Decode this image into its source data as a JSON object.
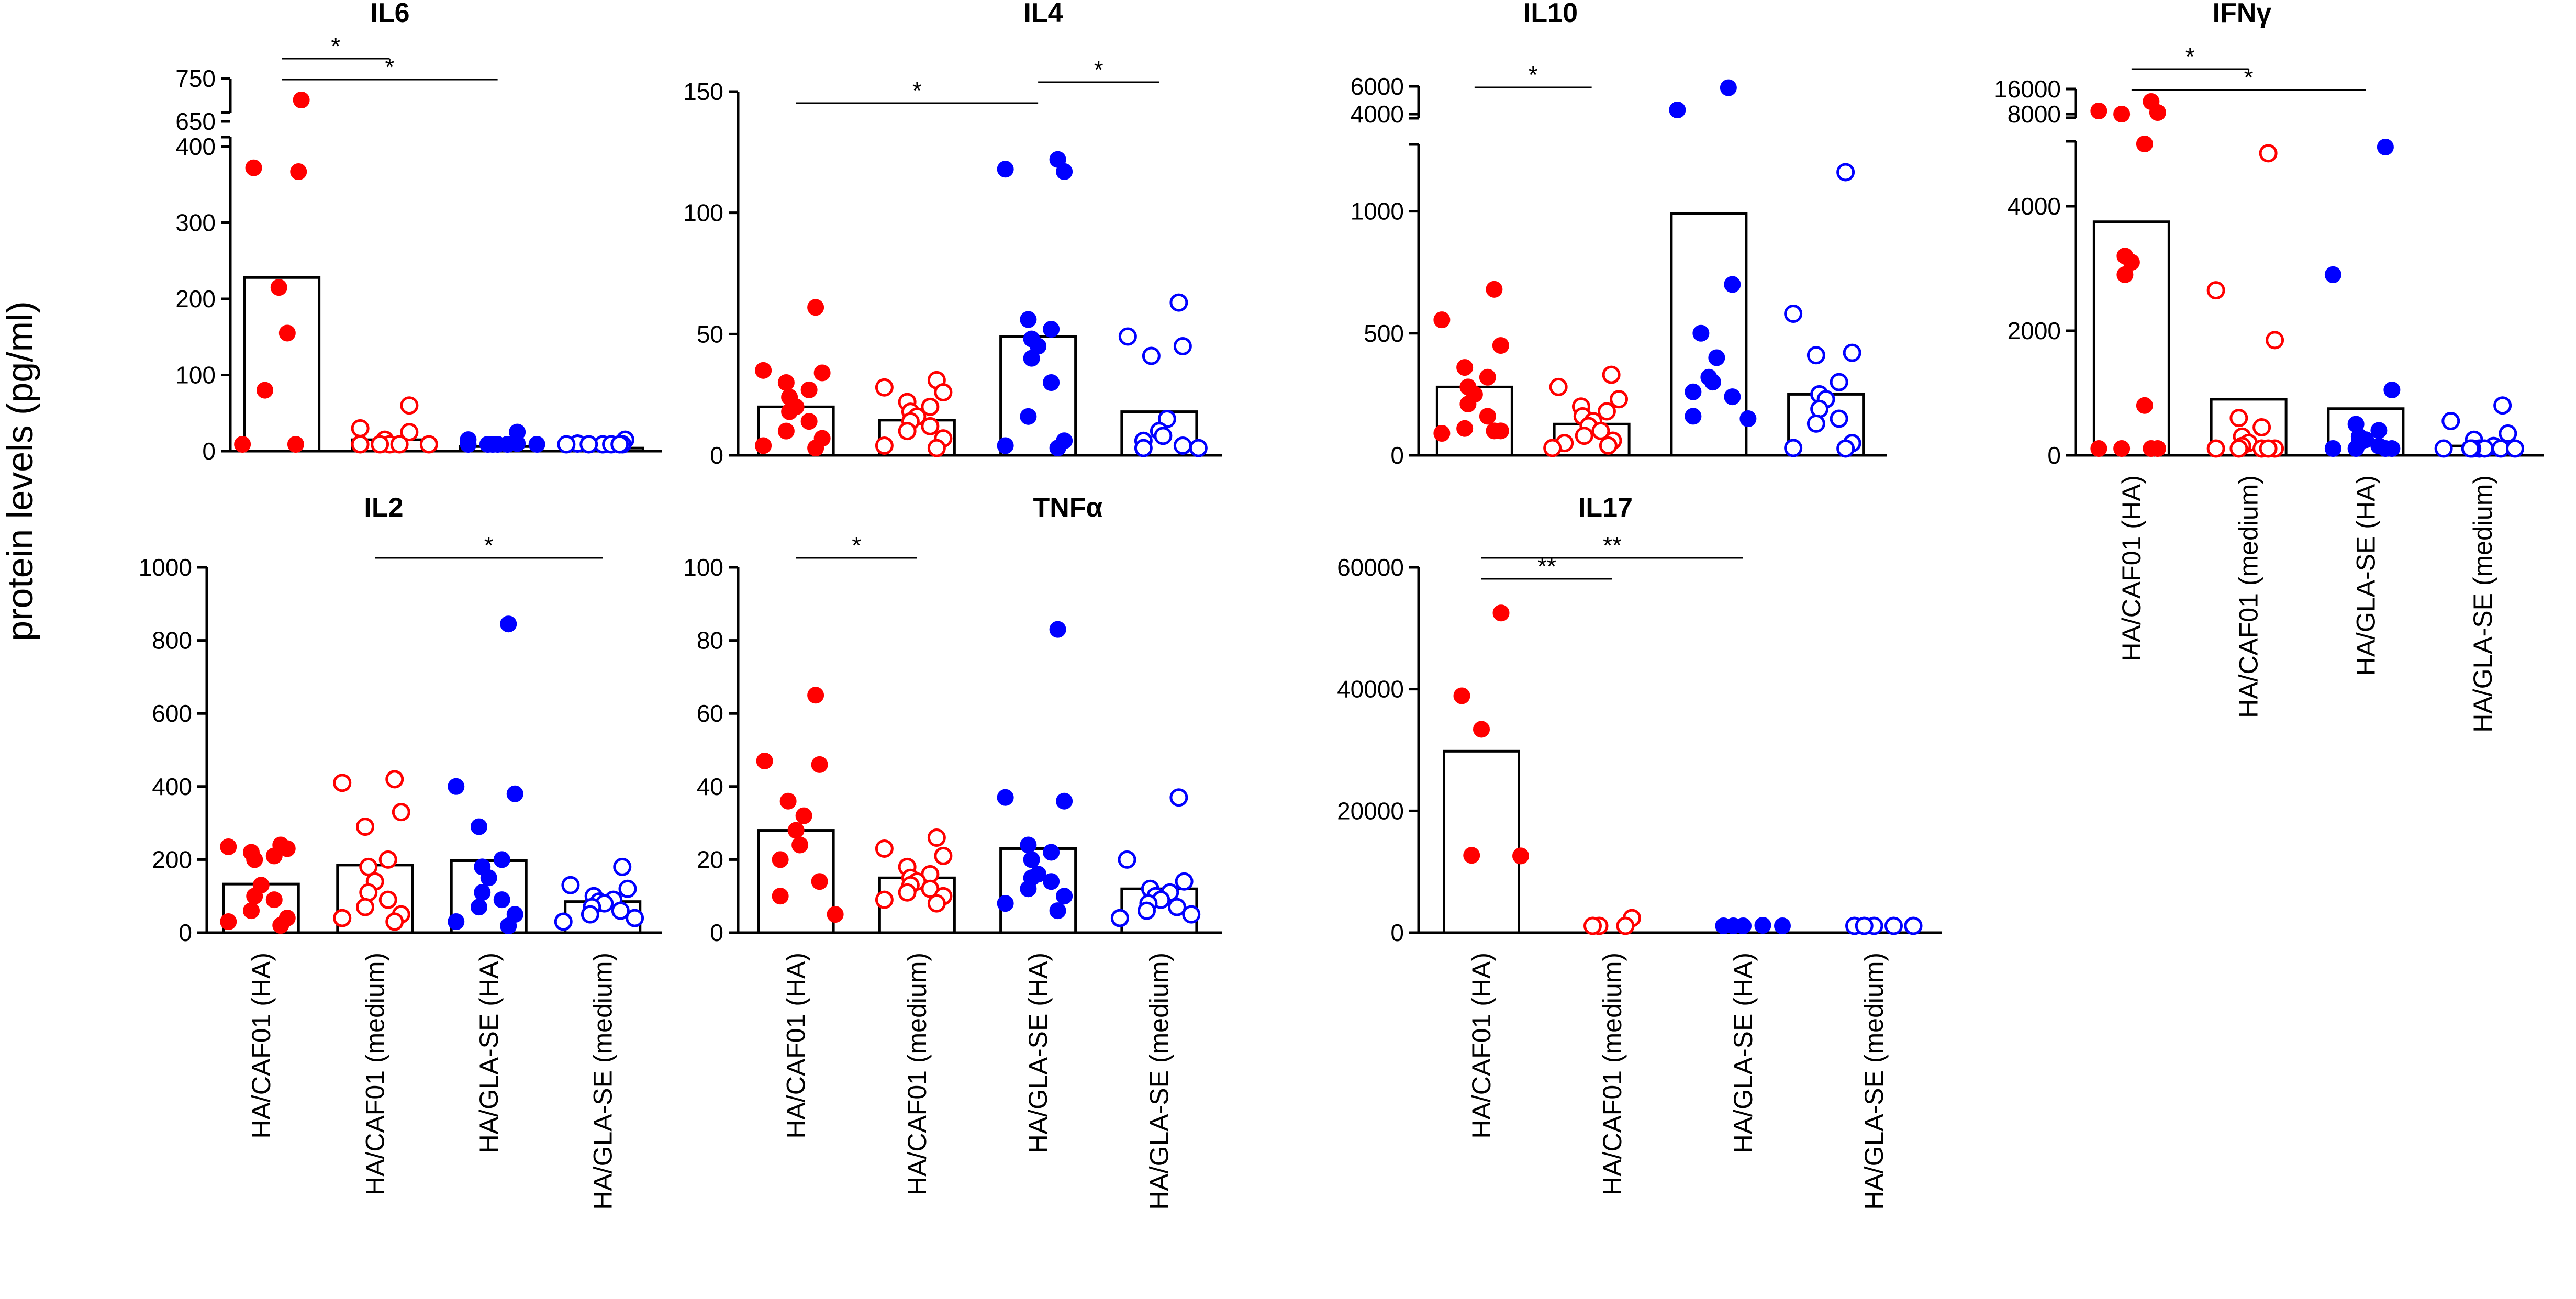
{
  "y_axis_title": "protein levels (pg/ml)",
  "categories": [
    "HA/CAF01 (HA)",
    "HA/CAF01 (medium)",
    "HA/GLA-SE (HA)",
    "HA/GLA-SE (medium)"
  ],
  "colors": {
    "red": "#ff0000",
    "blue": "#0000ff",
    "axis": "#000000",
    "bar_fill": "#ffffff"
  },
  "chart_data": [
    {
      "type": "bar",
      "title": "IL6",
      "ylabel": "protein levels (pg/ml)",
      "ylim": [
        0,
        400
      ],
      "yticks": [
        0,
        100,
        200,
        300,
        400
      ],
      "ytick_labels": [
        "0",
        "100",
        "200",
        "300",
        "400"
      ],
      "axis_break": {
        "upper_range": [
          650,
          750
        ],
        "upper_ticks": [
          650,
          750
        ],
        "upper_tick_labels": [
          "650",
          "750"
        ]
      },
      "bars": [
        228,
        15,
        6,
        4
      ],
      "points": [
        [
          700,
          372,
          367,
          215,
          155,
          80,
          2,
          2
        ],
        [
          60,
          30,
          25,
          15,
          8,
          5,
          3,
          2,
          1
        ],
        [
          25,
          15,
          10,
          8,
          6,
          5,
          4,
          3,
          2
        ],
        [
          15,
          10,
          8,
          6,
          5,
          4,
          3,
          2
        ]
      ],
      "significance": [
        {
          "from": 0,
          "to": 1,
          "label": "*"
        },
        {
          "from": 0,
          "to": 2,
          "label": "*"
        }
      ]
    },
    {
      "type": "bar",
      "title": "IL4",
      "ylabel": "protein levels (pg/ml)",
      "ylim": [
        0,
        150
      ],
      "yticks": [
        0,
        50,
        100,
        150
      ],
      "ytick_labels": [
        "0",
        "50",
        "100",
        "150"
      ],
      "bars": [
        20,
        14.5,
        49,
        18
      ],
      "points": [
        [
          61,
          35,
          34,
          30,
          27,
          24,
          20,
          18,
          14,
          10,
          7,
          4,
          3
        ],
        [
          31,
          28,
          26,
          22,
          20,
          18,
          16,
          14,
          12,
          10,
          7,
          4,
          3
        ],
        [
          122,
          118,
          117,
          56,
          52,
          48,
          45,
          40,
          30,
          16,
          6,
          4,
          3
        ],
        [
          63,
          49,
          45,
          41,
          15,
          10,
          8,
          6,
          4,
          3,
          3
        ]
      ],
      "significance": [
        {
          "from": 0,
          "to": 2,
          "label": "*"
        },
        {
          "from": 2,
          "to": 3,
          "label": "*"
        }
      ]
    },
    {
      "type": "bar",
      "title": "IL10",
      "ylabel": "protein levels (pg/ml)",
      "ylim": [
        0,
        1250
      ],
      "yticks": [
        0,
        500,
        1000
      ],
      "ytick_labels": [
        "0",
        "500",
        "1000"
      ],
      "axis_break": {
        "upper_range": [
          4000,
          6000
        ],
        "upper_ticks": [
          4000,
          6000
        ],
        "upper_tick_labels": [
          "4000",
          "6000"
        ]
      },
      "bars": [
        280,
        128,
        990,
        250
      ],
      "points": [
        [
          680,
          555,
          450,
          360,
          320,
          280,
          250,
          210,
          160,
          110,
          100,
          90,
          100
        ],
        [
          330,
          280,
          230,
          200,
          180,
          160,
          140,
          120,
          100,
          80,
          60,
          50,
          40,
          30
        ],
        [
          5900,
          4300,
          700,
          500,
          400,
          320,
          300,
          260,
          240,
          160,
          150
        ],
        [
          1160,
          580,
          420,
          410,
          300,
          250,
          230,
          190,
          150,
          130,
          50,
          30,
          10
        ]
      ],
      "significance": [
        {
          "from": 0,
          "to": 1,
          "label": "*"
        }
      ]
    },
    {
      "type": "bar",
      "title": "IFNγ",
      "ylabel": "protein levels (pg/ml)",
      "ylim": [
        0,
        5000
      ],
      "yticks": [
        0,
        2000,
        4000
      ],
      "ytick_labels": [
        "0",
        "2000",
        "4000"
      ],
      "axis_break": {
        "upper_range": [
          8000,
          16000
        ],
        "upper_ticks": [
          8000,
          16000
        ],
        "upper_tick_labels": [
          "8000",
          "16000"
        ]
      },
      "bars": [
        3750,
        900,
        750,
        150
      ],
      "points": [
        [
          12000,
          9000,
          8500,
          7500,
          5000,
          3200,
          3100,
          2900,
          800,
          100,
          30,
          10,
          5
        ],
        [
          4850,
          2650,
          1850,
          600,
          450,
          300,
          200,
          150,
          100,
          80,
          60,
          40,
          20
        ],
        [
          4950,
          2900,
          1050,
          500,
          400,
          300,
          250,
          200,
          150,
          100,
          80,
          60,
          40
        ],
        [
          800,
          550,
          350,
          250,
          150,
          100,
          80,
          60,
          40,
          30,
          20,
          10
        ]
      ],
      "significance": [
        {
          "from": 0,
          "to": 1,
          "label": "*"
        },
        {
          "from": 0,
          "to": 2,
          "label": "*"
        }
      ]
    },
    {
      "type": "bar",
      "title": "IL2",
      "ylabel": "protein levels (pg/ml)",
      "ylim": [
        0,
        1000
      ],
      "yticks": [
        0,
        200,
        400,
        600,
        800,
        1000
      ],
      "ytick_labels": [
        "0",
        "200",
        "400",
        "600",
        "800",
        "1000"
      ],
      "bars": [
        133,
        185,
        197,
        85
      ],
      "points": [
        [
          240,
          235,
          230,
          220,
          210,
          200,
          130,
          100,
          90,
          60,
          40,
          30,
          20
        ],
        [
          420,
          410,
          330,
          290,
          200,
          180,
          140,
          110,
          90,
          70,
          50,
          40,
          30
        ],
        [
          845,
          400,
          380,
          290,
          200,
          180,
          150,
          110,
          90,
          70,
          50,
          30,
          10
        ],
        [
          180,
          130,
          120,
          100,
          90,
          85,
          80,
          70,
          60,
          50,
          40,
          30
        ]
      ],
      "significance": [
        {
          "from": 1,
          "to": 3,
          "label": "*"
        }
      ]
    },
    {
      "type": "bar",
      "title": "TNFα",
      "ylabel": "protein levels (pg/ml)",
      "ylim": [
        0,
        100
      ],
      "yticks": [
        0,
        20,
        40,
        60,
        80,
        100
      ],
      "ytick_labels": [
        "0",
        "20",
        "40",
        "60",
        "80",
        "100"
      ],
      "bars": [
        28,
        15,
        23,
        12
      ],
      "points": [
        [
          65,
          47,
          46,
          36,
          32,
          28,
          24,
          20,
          14,
          10,
          5
        ],
        [
          26,
          23,
          21,
          18,
          16,
          15,
          14,
          13,
          12,
          11,
          10,
          9,
          8
        ],
        [
          83,
          37,
          36,
          24,
          22,
          20,
          16,
          15,
          14,
          12,
          10,
          8,
          6
        ],
        [
          37,
          20,
          14,
          12,
          11,
          10,
          9,
          8,
          7,
          6,
          5,
          4
        ]
      ],
      "significance": [
        {
          "from": 0,
          "to": 1,
          "label": "*"
        }
      ]
    },
    {
      "type": "bar",
      "title": "IL17",
      "ylabel": "protein levels (pg/ml)",
      "ylim": [
        0,
        60000
      ],
      "yticks": [
        0,
        20000,
        40000,
        60000
      ],
      "ytick_labels": [
        "0",
        "20000",
        "40000",
        "60000"
      ],
      "bars": [
        29800,
        0,
        0,
        0
      ],
      "points": [
        [
          52500,
          38900,
          33400,
          12700,
          12600
        ],
        [
          2400,
          300,
          200,
          100
        ],
        [
          1200,
          500,
          300,
          200,
          100
        ],
        [
          100,
          100,
          100,
          100,
          100
        ]
      ],
      "significance": [
        {
          "from": 0,
          "to": 1,
          "label": "**"
        },
        {
          "from": 0,
          "to": 2,
          "label": "**"
        }
      ]
    }
  ]
}
